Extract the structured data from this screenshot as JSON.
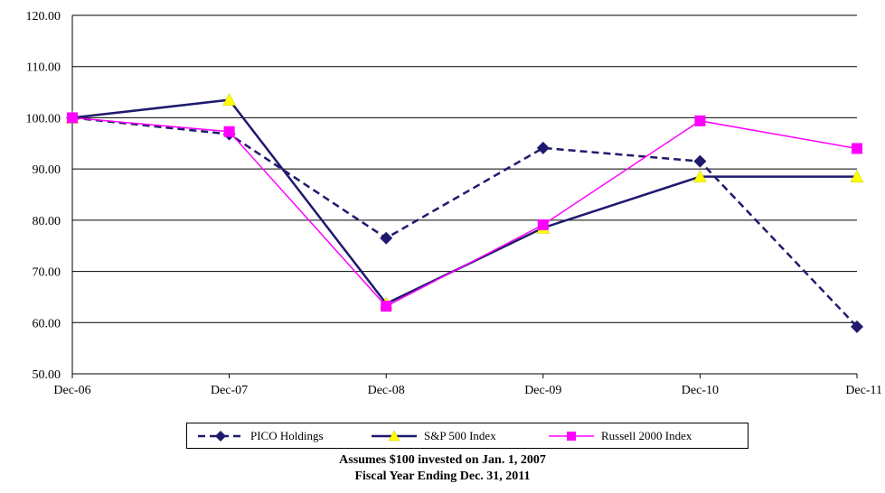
{
  "chart_data": {
    "type": "line",
    "categories": [
      "Dec-06",
      "Dec-07",
      "Dec-08",
      "Dec-09",
      "Dec-10",
      "Dec-11"
    ],
    "ylim": [
      50,
      120
    ],
    "yticks": [
      "50.00",
      "60.00",
      "70.00",
      "80.00",
      "90.00",
      "100.00",
      "110.00",
      "120.00"
    ],
    "grid": true,
    "legend_placement": "bottom",
    "series": [
      {
        "name": "PICO Holdings",
        "values": [
          100,
          96.8,
          76.5,
          94.1,
          91.5,
          59.2
        ],
        "color": "#1f1a6e",
        "line": "dashed",
        "marker": "diamond"
      },
      {
        "name": "S&P 500 Index",
        "values": [
          100,
          103.5,
          63.7,
          78.5,
          88.5,
          88.5
        ],
        "color": "#1f1a6e",
        "line": "solid",
        "marker": "triangle",
        "marker_color": "#ffff00"
      },
      {
        "name": "Russell 2000 Index",
        "values": [
          100,
          97.3,
          63.2,
          79.1,
          99.4,
          94.0
        ],
        "color": "#ff00ff",
        "line": "solid",
        "marker": "square"
      }
    ]
  },
  "captions": {
    "line1": "Assumes $100 invested on Jan. 1, 2007",
    "line2": "Fiscal Year Ending Dec. 31, 2011"
  }
}
